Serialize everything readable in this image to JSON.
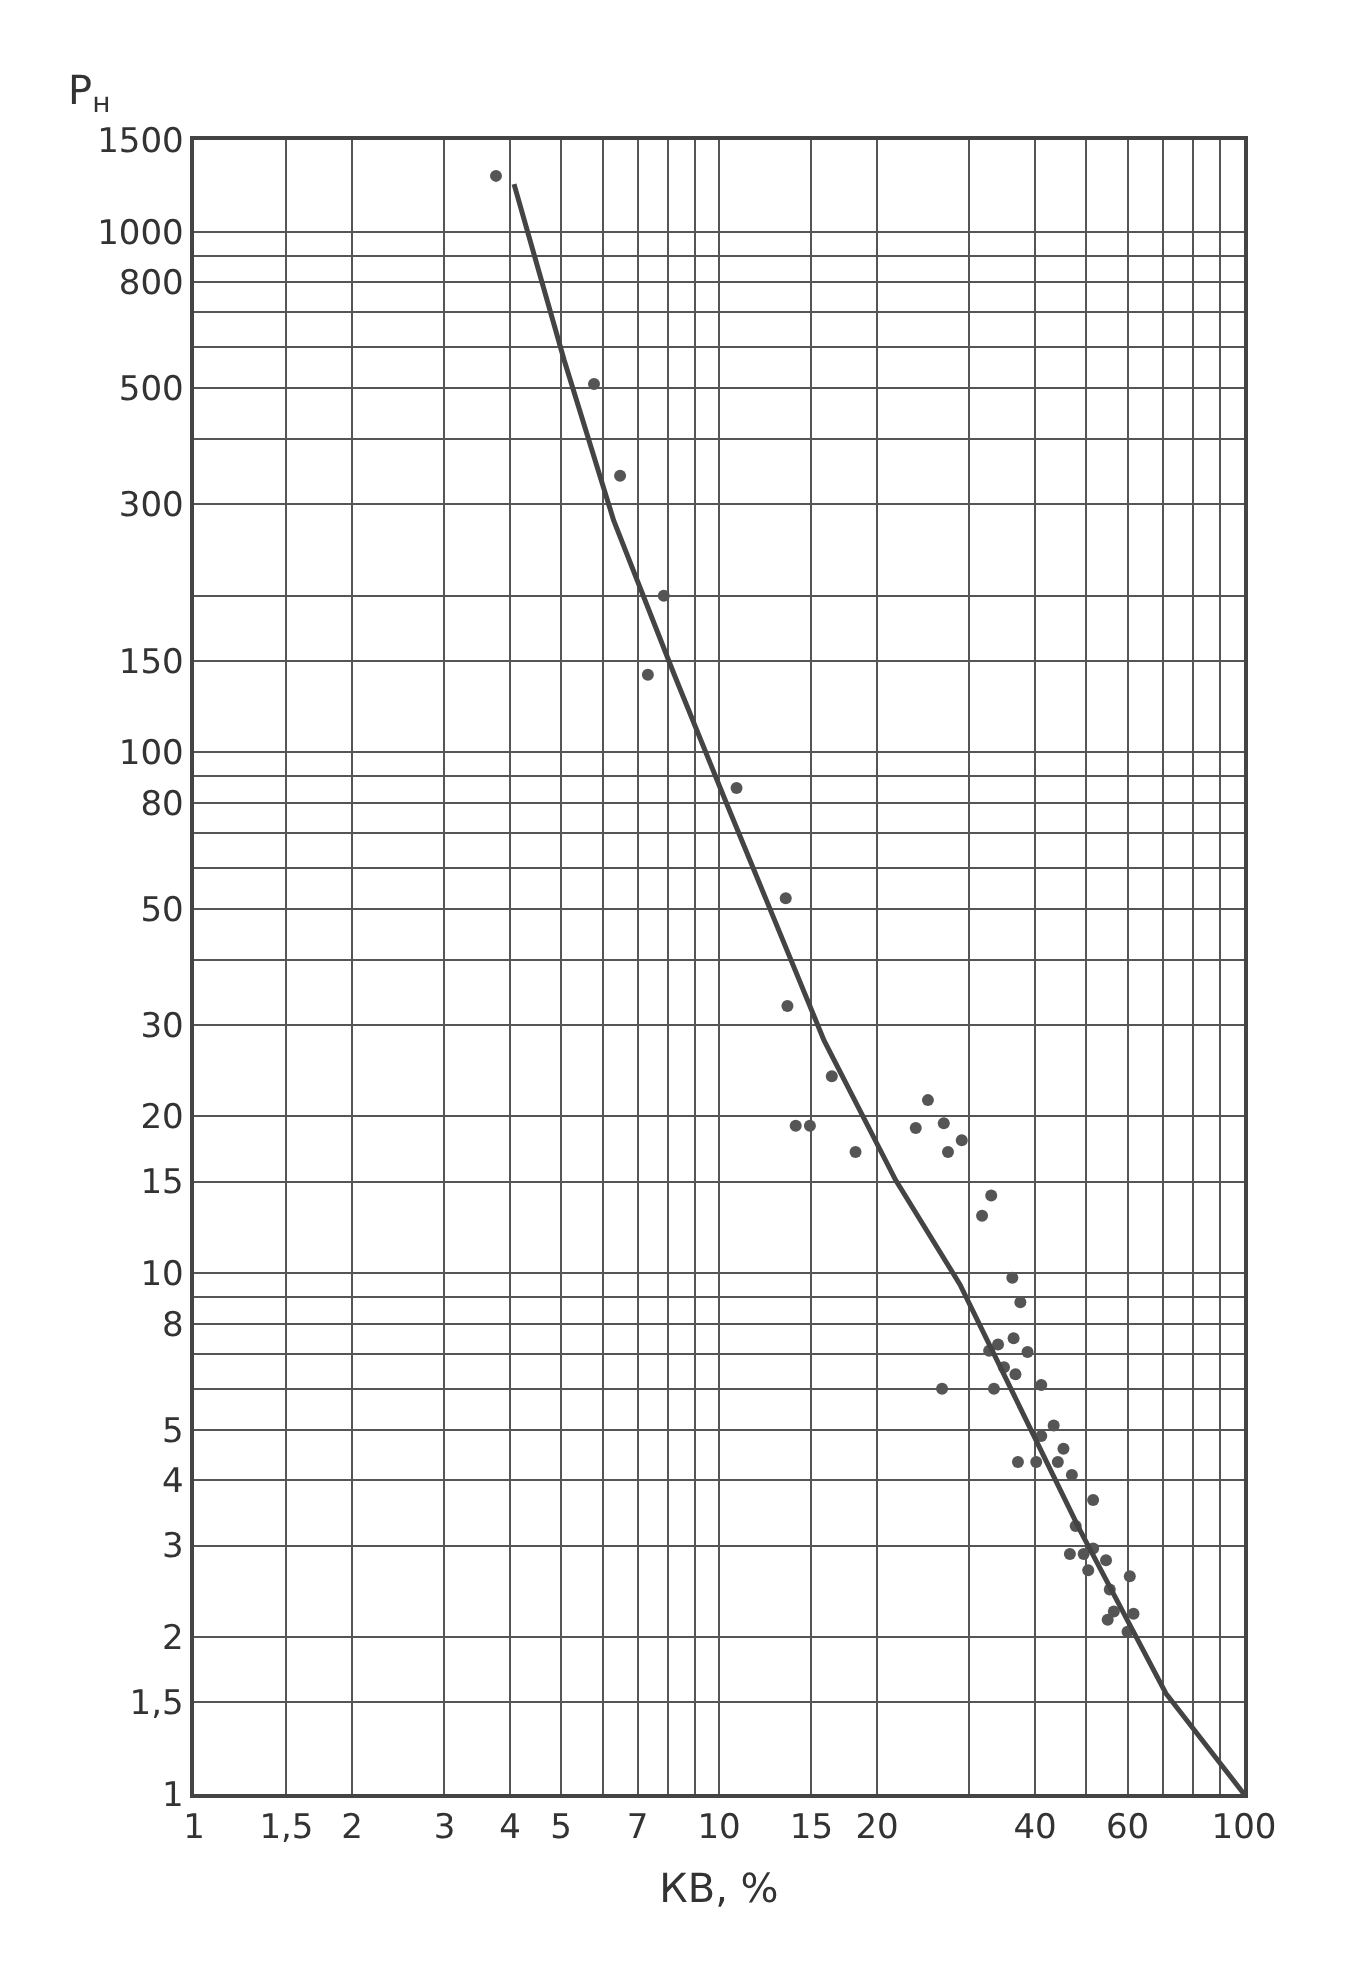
{
  "chart_data": {
    "type": "scatter",
    "xlabel": "КВ, %",
    "ylabel": "Р$_{н}$",
    "log": "xy",
    "grid": true,
    "marker": "circle",
    "legend": false,
    "xlim": [
      1,
      100
    ],
    "ylim": [
      1,
      1500
    ],
    "xticks": [
      1,
      {
        "value": 1.5,
        "label": "1,5"
      },
      2,
      3,
      4,
      5,
      {
        "value": 6,
        "label": null
      },
      7,
      {
        "value": 8,
        "label": null
      },
      {
        "value": 9,
        "label": null
      },
      10,
      15,
      20,
      {
        "value": 30,
        "label": null
      },
      40,
      {
        "value": 50,
        "label": null
      },
      60,
      {
        "value": 70,
        "label": null
      },
      {
        "value": 80,
        "label": null
      },
      {
        "value": 90,
        "label": null
      },
      100
    ],
    "yticks": [
      1,
      {
        "value": 1.5,
        "label": "1,5"
      },
      2,
      3,
      4,
      5,
      {
        "value": 6,
        "label": null
      },
      {
        "value": 7,
        "label": null
      },
      8,
      {
        "value": 9,
        "label": null
      },
      10,
      15,
      20,
      30,
      {
        "value": 40,
        "label": null
      },
      50,
      {
        "value": 60,
        "label": null
      },
      {
        "value": 70,
        "label": null
      },
      80,
      {
        "value": 90,
        "label": null
      },
      100,
      150,
      {
        "value": 200,
        "label": null
      },
      300,
      {
        "value": 400,
        "label": null
      },
      500,
      {
        "value": 600,
        "label": null
      },
      {
        "value": 700,
        "label": null
      },
      800,
      {
        "value": 900,
        "label": null
      },
      1000,
      1500
    ],
    "series": [
      {
        "color": "#555555",
        "x": [
          3.76,
          5.78,
          6.48,
          7.85,
          7.32,
          10.8,
          13.4,
          13.5,
          14.0,
          14.9,
          16.4,
          18.2,
          23.7,
          25.0,
          26.8,
          27.3,
          29.0,
          31.7,
          33.0,
          36.2,
          37.5,
          34.0,
          36.4,
          38.7,
          34.9,
          32.7,
          36.7,
          26.6,
          33.4,
          41.1,
          41.1,
          43.4,
          45.3,
          37.1,
          40.2,
          44.2,
          47.0,
          51.6,
          47.8,
          46.6,
          49.5,
          51.6,
          50.5,
          54.6,
          60.6,
          55.5,
          56.5,
          55.0,
          61.6,
          60.0
        ],
        "values": [
          1280,
          510,
          340,
          200,
          141,
          85.5,
          52.5,
          32.6,
          19.2,
          19.2,
          23.9,
          17.1,
          19.0,
          21.5,
          19.4,
          17.1,
          18.0,
          12.9,
          14.1,
          9.8,
          8.8,
          7.3,
          7.5,
          7.06,
          6.6,
          7.1,
          6.4,
          6.0,
          6.0,
          6.1,
          4.87,
          5.1,
          4.6,
          4.34,
          4.34,
          4.34,
          4.1,
          3.67,
          3.27,
          2.89,
          2.89,
          2.96,
          2.69,
          2.81,
          2.62,
          2.47,
          2.24,
          2.16,
          2.22,
          2.05
        ]
      },
      {
        "type": "line",
        "color": "#444444",
        "line_style": "solid",
        "marker": "none",
        "x": [
          4.07,
          5.07,
          6.3,
          8.22,
          10.2,
          15.85,
          21.7,
          28.8,
          48.7,
          71.0,
          100
        ],
        "values": [
          1234,
          567,
          279,
          141,
          82.5,
          28.0,
          15.1,
          9.5,
          3.21,
          1.56,
          1
        ]
      }
    ]
  }
}
